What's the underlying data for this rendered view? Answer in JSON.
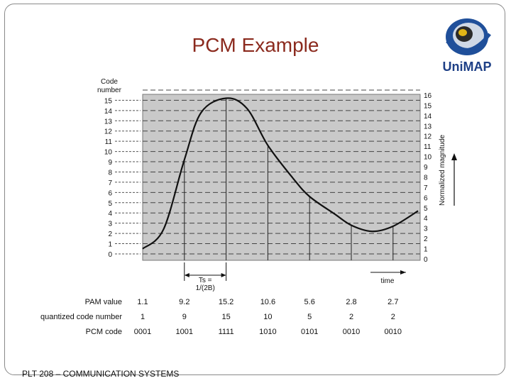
{
  "slide": {
    "title": "PCM Example",
    "footer": "PLT 208 – COMMUNICATION SYSTEMS",
    "logo_text": "UniMAP"
  },
  "chart_data": {
    "type": "line",
    "y_left_title_lines": [
      "Code",
      "number"
    ],
    "y_right_title": "Normalized magnitude",
    "x_label": "time",
    "code_levels": [
      0,
      1,
      2,
      3,
      4,
      5,
      6,
      7,
      8,
      9,
      10,
      11,
      12,
      13,
      14,
      15
    ],
    "magnitude_levels": [
      0,
      1,
      2,
      3,
      4,
      5,
      6,
      7,
      8,
      9,
      10,
      11,
      12,
      13,
      14,
      15,
      16
    ],
    "ylim": [
      0,
      16
    ],
    "sample_interval_label_lines": [
      "Ts =",
      "1/(2B)"
    ],
    "samples": [
      {
        "pam": "1.1",
        "code_number": "1",
        "pcm": "0001"
      },
      {
        "pam": "9.2",
        "code_number": "9",
        "pcm": "1001"
      },
      {
        "pam": "15.2",
        "code_number": "15",
        "pcm": "1111"
      },
      {
        "pam": "10.6",
        "code_number": "10",
        "pcm": "1010"
      },
      {
        "pam": "5.6",
        "code_number": "5",
        "pcm": "0101"
      },
      {
        "pam": "2.8",
        "code_number": "2",
        "pcm": "0010"
      },
      {
        "pam": "2.7",
        "code_number": "2",
        "pcm": "0010"
      }
    ],
    "curve": [
      [
        0,
        0.5
      ],
      [
        0.5,
        2.4
      ],
      [
        1,
        9.2
      ],
      [
        1.4,
        13.8
      ],
      [
        2,
        15.2
      ],
      [
        2.5,
        14.2
      ],
      [
        3,
        10.6
      ],
      [
        3.6,
        7.4
      ],
      [
        4,
        5.6
      ],
      [
        4.6,
        3.9
      ],
      [
        5,
        2.8
      ],
      [
        5.5,
        2.2
      ],
      [
        6,
        2.7
      ],
      [
        6.6,
        4.2
      ]
    ],
    "row_headers": [
      "PAM value",
      "quantized code number",
      "PCM code"
    ],
    "series": [
      {
        "values": [
          1.1,
          9.2,
          15.2,
          10.6,
          5.6,
          2.8,
          2.7
        ]
      }
    ],
    "colors": {
      "plot_background": "#c9c9c9",
      "curve": "#111111",
      "title": "#8b2a1e"
    }
  }
}
